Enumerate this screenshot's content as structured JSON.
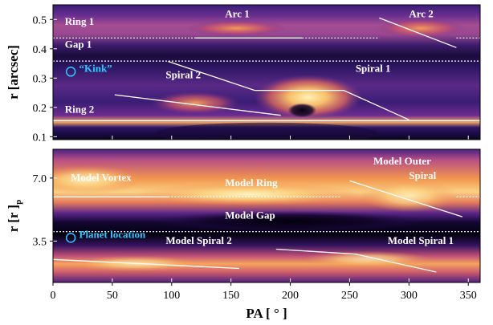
{
  "chart_data": [
    {
      "type": "heatmap",
      "panel": "top",
      "xlim": [
        0,
        360
      ],
      "ylim": [
        0.09,
        0.55
      ],
      "ylabel": "r [arcsec]",
      "yticks": [
        0.1,
        0.2,
        0.3,
        0.4,
        0.5
      ],
      "ytick_labels": [
        "0.1",
        "0.2",
        "0.3",
        "0.4",
        "0.5"
      ],
      "features": {
        "ring1": {
          "r": 0.48
        },
        "gap1": {
          "r": 0.4
        },
        "ring2": {
          "r": 0.155
        },
        "arc1": {
          "pa": [
            90,
            220
          ],
          "r": 0.47
        },
        "arc2": {
          "pa": [
            275,
            340
          ],
          "r": 0.46
        },
        "spiral1": {
          "pa": [
            150,
            300
          ],
          "r": [
            0.3,
            0.2
          ]
        },
        "spiral2": {
          "pa": [
            70,
            220
          ],
          "r": [
            0.2,
            0.17
          ]
        }
      },
      "annotations": [
        {
          "text": "Ring 1",
          "x": 10,
          "y": 0.482,
          "color": "#ffffff"
        },
        {
          "text": "Gap 1",
          "x": 10,
          "y": 0.404,
          "color": "#ffffff"
        },
        {
          "text": "Ring 2",
          "x": 10,
          "y": 0.182,
          "color": "#ffffff"
        },
        {
          "text": "“Kink”",
          "x": 22,
          "y": 0.322,
          "color": "#33c6ff"
        },
        {
          "text": "Arc 1",
          "x": 145,
          "y": 0.508,
          "color": "#ffffff"
        },
        {
          "text": "Arc 2",
          "x": 300,
          "y": 0.508,
          "color": "#ffffff"
        },
        {
          "text": "Spiral 2",
          "x": 95,
          "y": 0.3,
          "color": "#ffffff"
        },
        {
          "text": "Spiral 1",
          "x": 255,
          "y": 0.322,
          "color": "#ffffff"
        }
      ],
      "overlay_lines": [
        {
          "style": "dotted",
          "points": [
            [
              0,
              0.437
            ],
            [
              120,
              0.437
            ]
          ]
        },
        {
          "style": "solid",
          "points": [
            [
              120,
              0.437
            ],
            [
              210,
              0.437
            ]
          ]
        },
        {
          "style": "dotted",
          "points": [
            [
              210,
              0.437
            ],
            [
              275,
              0.437
            ]
          ]
        },
        {
          "style": "dotted",
          "points": [
            [
              340,
              0.437
            ],
            [
              360,
              0.437
            ]
          ]
        },
        {
          "style": "solid",
          "points": [
            [
              275,
              0.505
            ],
            [
              340,
              0.404
            ]
          ]
        },
        {
          "style": "dotted",
          "points": [
            [
              0,
              0.358
            ],
            [
              360,
              0.358
            ]
          ]
        },
        {
          "style": "solid",
          "points": [
            [
              0,
              0.155
            ],
            [
              360,
              0.155
            ]
          ]
        },
        {
          "style": "solid",
          "points": [
            [
              52,
              0.243
            ],
            [
              192,
              0.173
            ]
          ]
        },
        {
          "style": "solid",
          "points": [
            [
              97,
              0.357
            ],
            [
              170,
              0.258
            ],
            [
              245,
              0.258
            ],
            [
              300,
              0.158
            ]
          ]
        }
      ],
      "scatter_points": [
        {
          "x": 15,
          "y": 0.322,
          "marker": "circle",
          "color": "#33c6ff"
        }
      ]
    },
    {
      "type": "heatmap",
      "panel": "bottom",
      "xlim": [
        0,
        360
      ],
      "ylim": [
        1.2,
        8.6
      ],
      "xlabel": "PA [ ° ]",
      "ylabel": "r [r ]p",
      "ylabel_main": "r [r ]",
      "ylabel_sub": "p",
      "xticks": [
        0,
        50,
        100,
        150,
        200,
        250,
        300,
        350
      ],
      "xtick_labels": [
        "0",
        "50",
        "100",
        "150",
        "200",
        "250",
        "300",
        "350"
      ],
      "yticks": [
        3.5,
        7.0
      ],
      "ytick_labels": [
        "3.5",
        "7.0"
      ],
      "annotations": [
        {
          "text": "Model Vortex",
          "x": 15,
          "y": 6.85,
          "color": "#ffffff"
        },
        {
          "text": "Model Ring",
          "x": 145,
          "y": 6.55,
          "color": "#ffffff"
        },
        {
          "text": "Model Gap",
          "x": 145,
          "y": 4.75,
          "color": "#ffffff"
        },
        {
          "text": "Model Outer",
          "x": 270,
          "y": 7.75,
          "color": "#ffffff"
        },
        {
          "text": "Spiral",
          "x": 300,
          "y": 6.95,
          "color": "#ffffff"
        },
        {
          "text": "Planet location",
          "x": 22,
          "y": 3.68,
          "color": "#33c6ff"
        },
        {
          "text": "Model Spiral 2",
          "x": 95,
          "y": 3.35,
          "color": "#ffffff"
        },
        {
          "text": "Model Spiral 1",
          "x": 282,
          "y": 3.35,
          "color": "#ffffff"
        }
      ],
      "overlay_lines": [
        {
          "style": "solid",
          "points": [
            [
              0,
              5.95
            ],
            [
              97,
              5.95
            ]
          ]
        },
        {
          "style": "dotted",
          "points": [
            [
              97,
              5.95
            ],
            [
              243,
              5.95
            ]
          ]
        },
        {
          "style": "dotted",
          "points": [
            [
              340,
              5.95
            ],
            [
              360,
              5.95
            ]
          ]
        },
        {
          "style": "solid",
          "points": [
            [
              250,
              6.85
            ],
            [
              345,
              4.85
            ]
          ]
        },
        {
          "style": "dotted",
          "points": [
            [
              0,
              4.02
            ],
            [
              360,
              4.02
            ]
          ]
        },
        {
          "style": "solid",
          "points": [
            [
              0,
              2.48
            ],
            [
              157,
              1.98
            ]
          ]
        },
        {
          "style": "solid",
          "points": [
            [
              188,
              3.05
            ],
            [
              255,
              2.78
            ],
            [
              323,
              1.78
            ]
          ]
        }
      ],
      "scatter_points": [
        {
          "x": 15,
          "y": 3.68,
          "marker": "circle",
          "color": "#33c6ff"
        }
      ]
    }
  ]
}
